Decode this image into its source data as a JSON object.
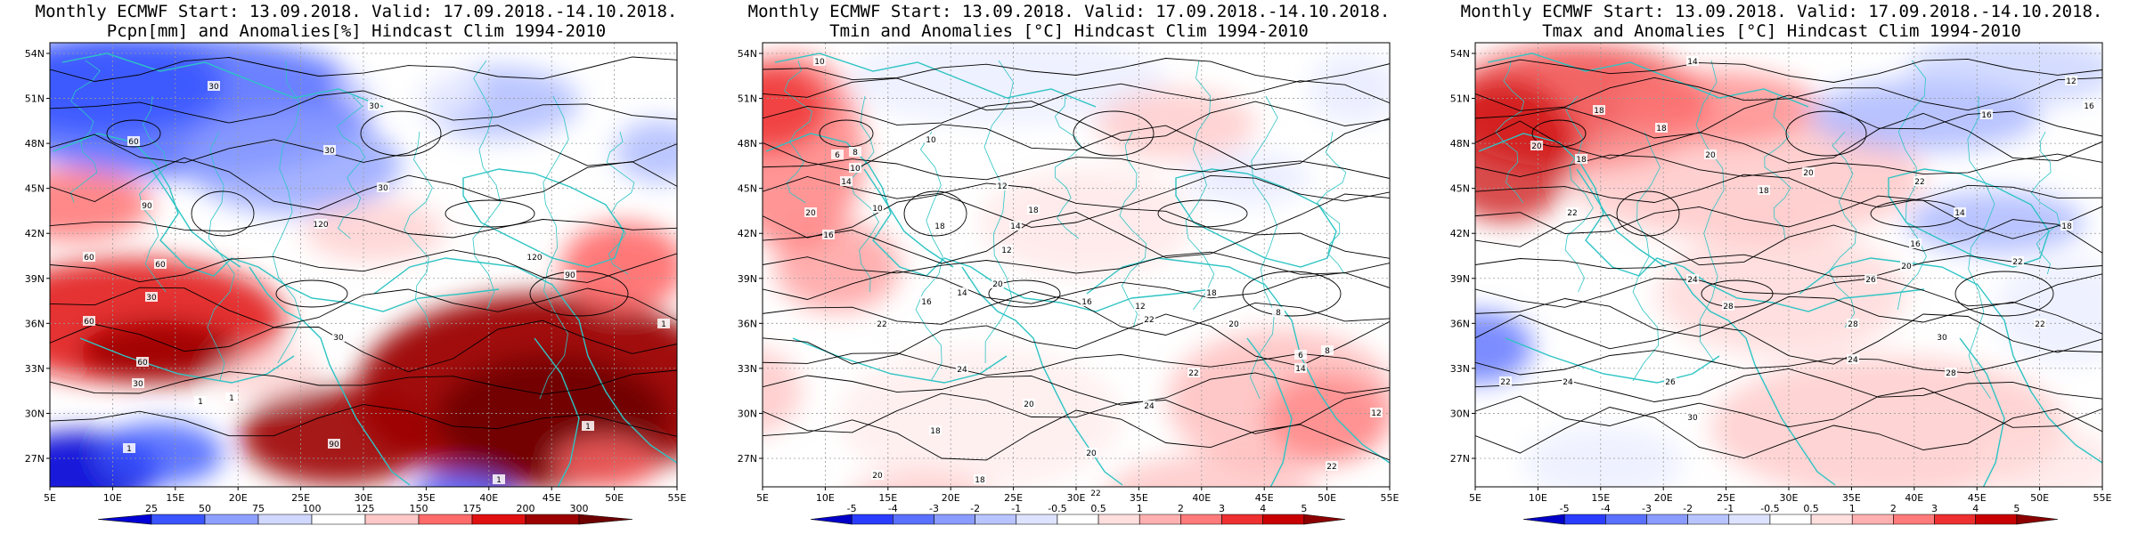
{
  "panels": [
    {
      "title_line1": "Monthly ECMWF Start: 13.09.2018. Valid: 17.09.2018.-14.10.2018.",
      "title_line2": "Pcpn[mm] and Anomalies[%] Hindcast Clim 1994-2010",
      "colorbar": {
        "labels": [
          "25",
          "50",
          "75",
          "100",
          "125",
          "150",
          "175",
          "200",
          "300"
        ],
        "colors": [
          "#0000d6",
          "#3a55ff",
          "#8ea0ff",
          "#d0d8ff",
          "#ffffff",
          "#ffc8c8",
          "#ff6a6a",
          "#e01010",
          "#9c0000",
          "#6e0000"
        ]
      },
      "contour_labels": [
        "30",
        "30",
        "60",
        "30",
        "90",
        "120",
        "60",
        "30",
        "120",
        "60",
        "30",
        "60",
        "90",
        "30",
        "1",
        "60",
        "30",
        "1",
        "1",
        "1",
        "90",
        "1",
        "1"
      ]
    },
    {
      "title_line1": "Monthly ECMWF Start: 13.09.2018. Valid: 17.09.2018.-14.10.2018.",
      "title_line2": "Tmin and Anomalies [°C] Hindcast Clim 1994-2010",
      "colorbar": {
        "labels": [
          "-5",
          "-4",
          "-3",
          "-2",
          "-1",
          "-0.5",
          "0.5",
          "1",
          "2",
          "3",
          "4",
          "5"
        ],
        "colors": [
          "#0000c8",
          "#2a3cff",
          "#5a70ff",
          "#8a9cff",
          "#b8c4ff",
          "#dde3ff",
          "#ffffff",
          "#ffdede",
          "#ffb0b0",
          "#ff7a7a",
          "#ee3030",
          "#c80000",
          "#8c0000"
        ]
      },
      "contour_labels": [
        "10",
        "10",
        "8",
        "6",
        "14",
        "10",
        "12",
        "10",
        "18",
        "20",
        "16",
        "14",
        "12",
        "18",
        "22",
        "16",
        "14",
        "20",
        "8",
        "12",
        "16",
        "18",
        "20",
        "22",
        "24",
        "24",
        "22",
        "20",
        "18",
        "22",
        "14",
        "12",
        "6",
        "8",
        "20",
        "18",
        "20",
        "22"
      ]
    },
    {
      "title_line1": "Monthly ECMWF Start: 13.09.2018. Valid: 17.09.2018.-14.10.2018.",
      "title_line2": "Tmax and Anomalies [°C] Hindcast Clim 1994-2010",
      "colorbar": {
        "labels": [
          "-5",
          "-4",
          "-3",
          "-2",
          "-1",
          "-0.5",
          "0.5",
          "1",
          "2",
          "3",
          "4",
          "5"
        ],
        "colors": [
          "#0000c8",
          "#2a3cff",
          "#5a70ff",
          "#8a9cff",
          "#b8c4ff",
          "#dde3ff",
          "#ffffff",
          "#ffdede",
          "#ffb0b0",
          "#ff7a7a",
          "#ee3030",
          "#c80000",
          "#8c0000"
        ]
      },
      "contour_labels": [
        "14",
        "12",
        "18",
        "16",
        "20",
        "16",
        "18",
        "18",
        "20",
        "18",
        "22",
        "20",
        "22",
        "14",
        "18",
        "16",
        "22",
        "20",
        "24",
        "26",
        "28",
        "30",
        "28",
        "24",
        "22",
        "26",
        "30",
        "28",
        "24",
        "22"
      ]
    }
  ],
  "axes": {
    "x_ticks": [
      "5E",
      "10E",
      "15E",
      "20E",
      "25E",
      "30E",
      "35E",
      "40E",
      "45E",
      "50E",
      "55E"
    ],
    "y_ticks": [
      "27N",
      "30N",
      "33N",
      "36N",
      "39N",
      "42N",
      "45N",
      "48N",
      "51N",
      "54N"
    ]
  },
  "colors": {
    "coastline": "#2ec4c4",
    "contour": "#000000",
    "gridline": "#9a9a9a"
  }
}
